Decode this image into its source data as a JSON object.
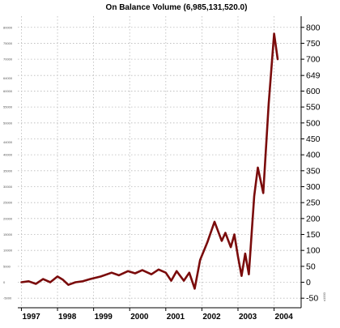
{
  "chart_data": {
    "type": "line",
    "title": "On Balance Volume (6,985,131,520.0)",
    "xlabel": "",
    "ylabel": "",
    "x_ticks": [
      "1997",
      "1998",
      "1999",
      "2000",
      "2001",
      "2002",
      "2003",
      "2004"
    ],
    "x_range": [
      1996.9,
      2004.75
    ],
    "left_axis": {
      "ticks": [
        "80000",
        "75000",
        "70000",
        "64000",
        "60000",
        "55000",
        "50000",
        "44000",
        "40000",
        "35000",
        "30000",
        "25000",
        "20000",
        "15000",
        "10000",
        "5000",
        "0",
        "-5000"
      ],
      "values": [
        80000,
        75000,
        70000,
        64000,
        60000,
        55000,
        50000,
        44000,
        40000,
        35000,
        30000,
        25000,
        20000,
        15000,
        10000,
        5000,
        0,
        -5000
      ]
    },
    "right_axis": {
      "ticks": [
        "800",
        "750",
        "700",
        "649",
        "600",
        "550",
        "500",
        "450",
        "400",
        "350",
        "300",
        "250",
        "200",
        "150",
        "100",
        "50",
        "0",
        "-50"
      ],
      "values": [
        800,
        750,
        700,
        649,
        600,
        550,
        500,
        450,
        400,
        350,
        300,
        250,
        200,
        150,
        100,
        50,
        0,
        -50
      ],
      "unit_label": "x1000"
    },
    "ylim": [
      -80,
      835
    ],
    "grid": true,
    "series": [
      {
        "color": "#7a0b0b",
        "x": [
          1997.0,
          1997.2,
          1997.4,
          1997.6,
          1997.8,
          1998.0,
          1998.15,
          1998.3,
          1998.5,
          1998.7,
          1998.9,
          1999.2,
          1999.5,
          1999.7,
          1999.95,
          2000.15,
          2000.35,
          2000.6,
          2000.8,
          2001.0,
          2001.15,
          2001.3,
          2001.5,
          2001.65,
          2001.8,
          2001.95,
          2002.15,
          2002.35,
          2002.55,
          2002.65,
          2002.8,
          2002.9,
          2003.0,
          2003.1,
          2003.2,
          2003.3,
          2003.45,
          2003.55,
          2003.7,
          2003.85,
          2004.0,
          2004.1
        ],
        "y": [
          0,
          3,
          -5,
          10,
          0,
          18,
          8,
          -8,
          0,
          3,
          10,
          18,
          30,
          22,
          35,
          28,
          38,
          25,
          40,
          30,
          5,
          35,
          5,
          30,
          -20,
          70,
          125,
          190,
          130,
          155,
          110,
          150,
          80,
          20,
          90,
          25,
          270,
          360,
          280,
          560,
          780,
          700
        ]
      }
    ]
  }
}
